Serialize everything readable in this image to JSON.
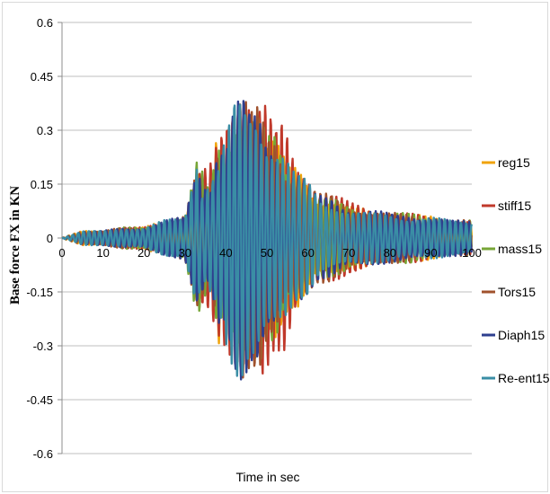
{
  "chart_data": {
    "type": "line",
    "title": "",
    "xlabel": "Time in sec",
    "ylabel": "Base force FX in KN",
    "xlim": [
      0,
      100
    ],
    "ylim": [
      -0.6,
      0.6
    ],
    "x_ticks": [
      0,
      10,
      20,
      30,
      40,
      50,
      60,
      70,
      80,
      90,
      100
    ],
    "x_tick_labels": [
      "0",
      "10",
      "20",
      "30",
      "40",
      "50",
      "60",
      "70",
      "80",
      "90",
      "100"
    ],
    "y_ticks": [
      0.6,
      0.45,
      0.3,
      0.15,
      0,
      -0.15,
      -0.3,
      -0.45,
      -0.6
    ],
    "y_tick_labels": [
      "0.6",
      "0.45",
      "0.3",
      "0.15",
      "0",
      "-0.15",
      "-0.3",
      "-0.45",
      "-0.6"
    ],
    "grid": "horizontal",
    "legend_position": "right",
    "series": [
      {
        "name": "reg15",
        "color": "#f0a30a",
        "peaks": [
          [
            0,
            0
          ],
          [
            5,
            0.02
          ],
          [
            10,
            -0.02
          ],
          [
            15,
            0.03
          ],
          [
            20,
            -0.03
          ],
          [
            25,
            0.05
          ],
          [
            30,
            -0.06
          ],
          [
            33,
            0.22
          ],
          [
            36,
            -0.15
          ],
          [
            38,
            0.3
          ],
          [
            40,
            -0.25
          ],
          [
            42,
            0.38
          ],
          [
            44,
            -0.4
          ],
          [
            46,
            0.36
          ],
          [
            48,
            -0.38
          ],
          [
            50,
            0.3
          ],
          [
            52,
            -0.3
          ],
          [
            55,
            0.2
          ],
          [
            58,
            -0.2
          ],
          [
            62,
            0.12
          ],
          [
            66,
            -0.12
          ],
          [
            70,
            0.09
          ],
          [
            75,
            -0.08
          ],
          [
            80,
            0.07
          ],
          [
            85,
            -0.07
          ],
          [
            90,
            0.06
          ],
          [
            95,
            -0.05
          ],
          [
            100,
            0.05
          ]
        ]
      },
      {
        "name": "stiff15",
        "color": "#c0392b",
        "peaks": [
          [
            0,
            0
          ],
          [
            5,
            0.02
          ],
          [
            10,
            -0.02
          ],
          [
            15,
            0.03
          ],
          [
            20,
            -0.03
          ],
          [
            25,
            0.05
          ],
          [
            30,
            -0.07
          ],
          [
            33,
            0.18
          ],
          [
            36,
            -0.2
          ],
          [
            38,
            0.28
          ],
          [
            40,
            -0.35
          ],
          [
            42,
            0.44
          ],
          [
            43,
            -0.47
          ],
          [
            44,
            0.48
          ],
          [
            46,
            -0.45
          ],
          [
            47,
            0.37
          ],
          [
            49,
            -0.42
          ],
          [
            52,
            0.3
          ],
          [
            54,
            -0.33
          ],
          [
            57,
            0.22
          ],
          [
            60,
            -0.2
          ],
          [
            63,
            0.14
          ],
          [
            66,
            -0.13
          ],
          [
            70,
            0.1
          ],
          [
            75,
            -0.09
          ],
          [
            80,
            0.08
          ],
          [
            85,
            -0.07
          ],
          [
            90,
            0.06
          ],
          [
            95,
            -0.06
          ],
          [
            100,
            0.05
          ]
        ]
      },
      {
        "name": "mass15",
        "color": "#77a637",
        "peaks": [
          [
            0,
            0
          ],
          [
            5,
            0.02
          ],
          [
            10,
            -0.02
          ],
          [
            15,
            0.03
          ],
          [
            20,
            -0.03
          ],
          [
            25,
            0.05
          ],
          [
            30,
            -0.06
          ],
          [
            33,
            0.22
          ],
          [
            36,
            -0.14
          ],
          [
            38,
            0.3
          ],
          [
            40,
            -0.26
          ],
          [
            42,
            0.37
          ],
          [
            44,
            -0.38
          ],
          [
            46,
            0.35
          ],
          [
            48,
            -0.36
          ],
          [
            50,
            0.28
          ],
          [
            52,
            -0.3
          ],
          [
            55,
            0.19
          ],
          [
            58,
            -0.19
          ],
          [
            62,
            0.12
          ],
          [
            66,
            -0.11
          ],
          [
            70,
            0.09
          ],
          [
            75,
            -0.08
          ],
          [
            80,
            0.07
          ],
          [
            85,
            -0.07
          ],
          [
            90,
            0.06
          ],
          [
            95,
            -0.05
          ],
          [
            100,
            0.05
          ]
        ]
      },
      {
        "name": "Tors15",
        "color": "#a0522d",
        "peaks": [
          [
            0,
            0
          ],
          [
            5,
            0.02
          ],
          [
            10,
            -0.02
          ],
          [
            15,
            0.03
          ],
          [
            20,
            -0.03
          ],
          [
            25,
            0.05
          ],
          [
            30,
            -0.06
          ],
          [
            33,
            0.2
          ],
          [
            36,
            -0.16
          ],
          [
            38,
            0.3
          ],
          [
            40,
            -0.27
          ],
          [
            42,
            0.4
          ],
          [
            44,
            -0.42
          ],
          [
            46,
            0.36
          ],
          [
            48,
            -0.37
          ],
          [
            50,
            0.3
          ],
          [
            52,
            -0.3
          ],
          [
            55,
            0.2
          ],
          [
            58,
            -0.2
          ],
          [
            62,
            0.13
          ],
          [
            66,
            -0.12
          ],
          [
            70,
            0.1
          ],
          [
            75,
            -0.08
          ],
          [
            80,
            0.07
          ],
          [
            85,
            -0.07
          ],
          [
            90,
            0.06
          ],
          [
            95,
            -0.05
          ],
          [
            100,
            0.05
          ]
        ]
      },
      {
        "name": "Diaph15",
        "color": "#2e3f8f",
        "peaks": [
          [
            0,
            0
          ],
          [
            5,
            0.02
          ],
          [
            10,
            -0.02
          ],
          [
            15,
            0.03
          ],
          [
            20,
            -0.03
          ],
          [
            25,
            0.05
          ],
          [
            30,
            -0.06
          ],
          [
            33,
            0.22
          ],
          [
            36,
            -0.15
          ],
          [
            38,
            0.3
          ],
          [
            40,
            -0.26
          ],
          [
            42,
            0.38
          ],
          [
            44,
            -0.4
          ],
          [
            46,
            0.35
          ],
          [
            48,
            -0.37
          ],
          [
            50,
            0.29
          ],
          [
            52,
            -0.3
          ],
          [
            55,
            0.2
          ],
          [
            58,
            -0.19
          ],
          [
            62,
            0.12
          ],
          [
            66,
            -0.12
          ],
          [
            70,
            0.09
          ],
          [
            75,
            -0.08
          ],
          [
            80,
            0.07
          ],
          [
            85,
            -0.07
          ],
          [
            90,
            0.06
          ],
          [
            95,
            -0.05
          ],
          [
            100,
            0.05
          ]
        ]
      },
      {
        "name": "Re-ent15",
        "color": "#3a8ea5",
        "peaks": [
          [
            0,
            0
          ],
          [
            5,
            0.02
          ],
          [
            10,
            -0.02
          ],
          [
            15,
            0.03
          ],
          [
            20,
            -0.03
          ],
          [
            25,
            0.05
          ],
          [
            30,
            -0.06
          ],
          [
            33,
            0.26
          ],
          [
            34,
            -0.14
          ],
          [
            36,
            0.18
          ],
          [
            38,
            -0.2
          ],
          [
            40,
            0.3
          ],
          [
            41,
            -0.33
          ],
          [
            42,
            0.38
          ],
          [
            44,
            -0.4
          ],
          [
            45,
            0.37
          ],
          [
            47,
            -0.38
          ],
          [
            48,
            0.36
          ],
          [
            50,
            -0.3
          ],
          [
            52,
            0.28
          ],
          [
            54,
            -0.26
          ],
          [
            57,
            0.18
          ],
          [
            60,
            -0.16
          ],
          [
            63,
            0.11
          ],
          [
            66,
            -0.1
          ],
          [
            70,
            0.08
          ],
          [
            75,
            -0.07
          ],
          [
            80,
            0.07
          ],
          [
            85,
            -0.06
          ],
          [
            90,
            0.06
          ],
          [
            95,
            -0.05
          ],
          [
            100,
            0.05
          ]
        ]
      }
    ]
  }
}
